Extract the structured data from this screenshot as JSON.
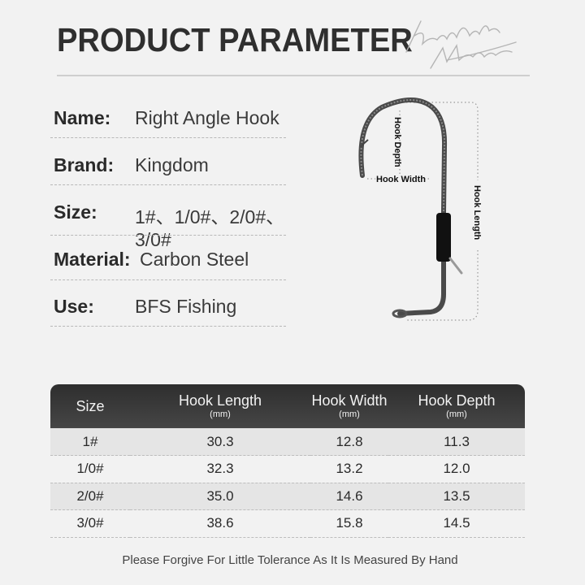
{
  "title": "PRODUCT PARAMETER",
  "logo_text": "Kingdom Monster",
  "params": [
    {
      "label": "Name:",
      "value": "Right Angle Hook"
    },
    {
      "label": "Brand:",
      "value": "Kingdom"
    },
    {
      "label": "Size:",
      "value": "1#、1/0#、2/0#、3/0#"
    },
    {
      "label": "Material:",
      "value": "Carbon Steel"
    },
    {
      "label": "Use:",
      "value": "BFS Fishing"
    }
  ],
  "diagram": {
    "hook_depth": "Hook Depth",
    "hook_width": "Hook Width",
    "hook_length": "Hook Length"
  },
  "table": {
    "headers": [
      {
        "label": "Size",
        "unit": ""
      },
      {
        "label": "Hook Length",
        "unit": "(mm)"
      },
      {
        "label": "Hook Width",
        "unit": "(mm)"
      },
      {
        "label": "Hook Depth",
        "unit": "(mm)"
      }
    ],
    "rows": [
      [
        "1#",
        "30.3",
        "12.8",
        "11.3"
      ],
      [
        "1/0#",
        "32.3",
        "13.2",
        "12.0"
      ],
      [
        "2/0#",
        "35.0",
        "14.6",
        "13.5"
      ],
      [
        "3/0#",
        "38.6",
        "15.8",
        "14.5"
      ]
    ]
  },
  "footer": "Please Forgive For Little Tolerance As It Is Measured By Hand"
}
